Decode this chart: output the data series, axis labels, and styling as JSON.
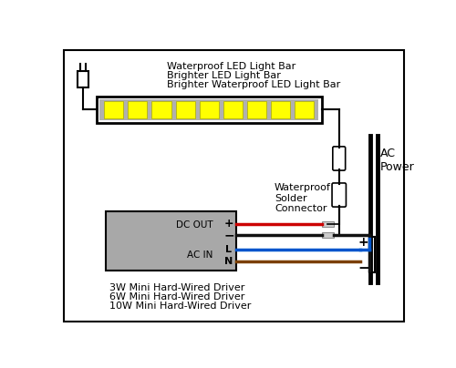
{
  "bg_color": "#ffffff",
  "border_color": "#000000",
  "led_bar_label": [
    "Waterproof LED Light Bar",
    "Brighter LED Light Bar",
    "Brighter Waterproof LED Light Bar"
  ],
  "driver_label": [
    "3W Mini Hard-Wired Driver",
    "6W Mini Hard-Wired Driver",
    "10W Mini Hard-Wired Driver"
  ],
  "dc_out_label": "DC OUT",
  "ac_in_label": "AC IN",
  "plus_label": "+",
  "minus_label": "−",
  "L_label": "L",
  "N_label": "N",
  "ac_power_label": "AC\nPower",
  "waterproof_label": "Waterproof\nSolder\nConnector",
  "led_color": "#ffff00",
  "driver_box_color": "#a8a8a8",
  "wire_red": "#cc0000",
  "wire_black": "#111111",
  "wire_blue": "#0055cc",
  "wire_brown": "#7B3F00",
  "led_bar_fill": "#b0b0b0"
}
